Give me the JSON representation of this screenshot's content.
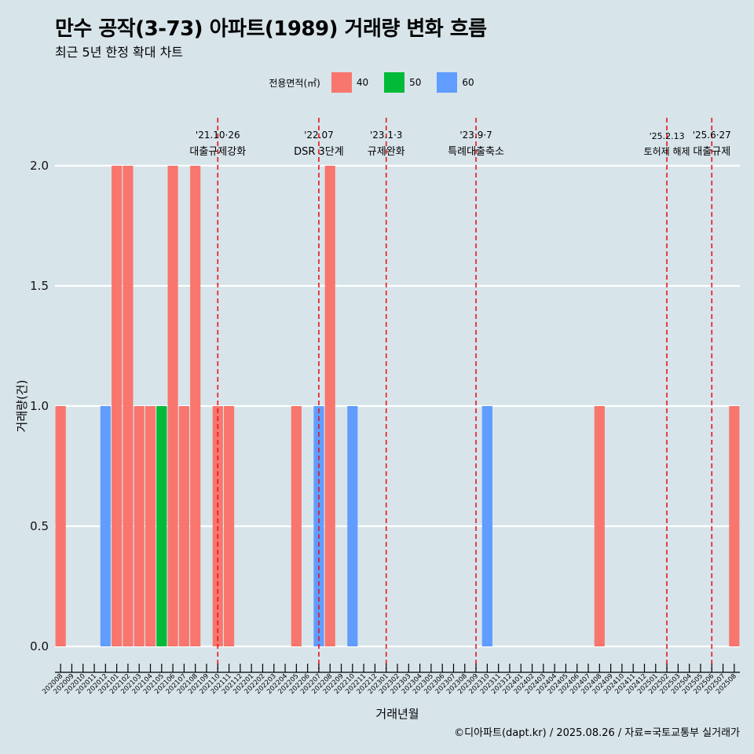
{
  "chart_data": {
    "type": "bar",
    "title": "만수 공작(3-73) 아파트(1989) 거래량 변화 흐름",
    "subtitle": "최근 5년 한정 확대 차트",
    "xlabel": "거래년월",
    "ylabel": "거래량(건)",
    "ylim": [
      0,
      2
    ],
    "yticks": [
      "0.0",
      "0.5",
      "1.0",
      "1.5",
      "2.0"
    ],
    "ytick_values": [
      0,
      0.5,
      1,
      1.5,
      2
    ],
    "legend": {
      "title": "전용면적(㎡)",
      "position": "top",
      "items": [
        {
          "label": "40",
          "color": "#f8766d"
        },
        {
          "label": "50",
          "color": "#00ba38"
        },
        {
          "label": "60",
          "color": "#619cff"
        }
      ]
    },
    "categories": [
      "202008",
      "202009",
      "202010",
      "202011",
      "202012",
      "202101",
      "202102",
      "202103",
      "202104",
      "202105",
      "202106",
      "202107",
      "202108",
      "202109",
      "202110",
      "202111",
      "202112",
      "202201",
      "202202",
      "202203",
      "202204",
      "202205",
      "202206",
      "202207",
      "202208",
      "202209",
      "202210",
      "202211",
      "202212",
      "202301",
      "202302",
      "202303",
      "202304",
      "202305",
      "202306",
      "202307",
      "202308",
      "202309",
      "202310",
      "202311",
      "202312",
      "202401",
      "202402",
      "202403",
      "202404",
      "202405",
      "202406",
      "202407",
      "202408",
      "202409",
      "202410",
      "202411",
      "202412",
      "202501",
      "202502",
      "202503",
      "202504",
      "202505",
      "202506",
      "202507",
      "202508"
    ],
    "bars": [
      {
        "period": "202008",
        "area": "40",
        "value": 1
      },
      {
        "period": "202012",
        "area": "60",
        "value": 1
      },
      {
        "period": "202101",
        "area": "40",
        "value": 2
      },
      {
        "period": "202102",
        "area": "40",
        "value": 2
      },
      {
        "period": "202103",
        "area": "40",
        "value": 1
      },
      {
        "period": "202104",
        "area": "40",
        "value": 1
      },
      {
        "period": "202105",
        "area": "50",
        "value": 1
      },
      {
        "period": "202106",
        "area": "40",
        "value": 2
      },
      {
        "period": "202107",
        "area": "40",
        "value": 1
      },
      {
        "period": "202108",
        "area": "40",
        "value": 2
      },
      {
        "period": "202110",
        "area": "40",
        "value": 1
      },
      {
        "period": "202111",
        "area": "40",
        "value": 1
      },
      {
        "period": "202205",
        "area": "40",
        "value": 1
      },
      {
        "period": "202207",
        "area": "60",
        "value": 1
      },
      {
        "period": "202208",
        "area": "40",
        "value": 2
      },
      {
        "period": "202210",
        "area": "60",
        "value": 1
      },
      {
        "period": "202310",
        "area": "60",
        "value": 1
      },
      {
        "period": "202408",
        "area": "40",
        "value": 1
      },
      {
        "period": "202508",
        "area": "40",
        "value": 1
      }
    ],
    "annotations": [
      {
        "period": "202110",
        "date": "'21.10·26",
        "text": "대출규제강화"
      },
      {
        "period": "202207",
        "date": "'22.07",
        "text": "DSR 3단계"
      },
      {
        "period": "202301",
        "date": "'23.1·3",
        "text": "규제완화"
      },
      {
        "period": "202309",
        "date": "'23.9·7",
        "text": "특례대출축소"
      },
      {
        "period": "202502",
        "date": "'25.2.13",
        "text": "토허제 해제"
      },
      {
        "period": "202506",
        "date": "'25.6·27",
        "text": "대출규제"
      }
    ],
    "caption": "©디아파트(dapt.kr) / 2025.08.26 / 자료=국토교통부 실거래가"
  }
}
